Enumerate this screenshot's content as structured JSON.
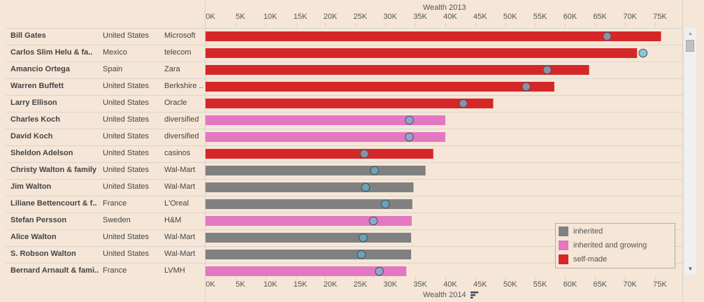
{
  "chart_data": {
    "type": "bar",
    "title": "",
    "top_axis_label": "Wealth 2013",
    "bottom_axis_label": "Wealth 2014",
    "xlim": [
      0,
      78
    ],
    "ticks": [
      "0K",
      "5K",
      "10K",
      "15K",
      "20K",
      "25K",
      "30K",
      "35K",
      "40K",
      "45K",
      "50K",
      "55K",
      "60K",
      "65K",
      "70K",
      "75K"
    ],
    "tick_values": [
      0,
      5,
      10,
      15,
      20,
      25,
      30,
      35,
      40,
      45,
      50,
      55,
      60,
      65,
      70,
      75
    ],
    "columns": [
      "Name",
      "Country",
      "Source"
    ],
    "rows": [
      {
        "name": "Bill Gates",
        "country": "United States",
        "source": "Microsoft",
        "type": "self-made",
        "wealth_2014": 76.0,
        "wealth_2013": 67.0
      },
      {
        "name": "Carlos Slim Helu & fa..",
        "country": "Mexico",
        "source": "telecom",
        "type": "self-made",
        "wealth_2014": 72.0,
        "wealth_2013": 73.0
      },
      {
        "name": "Amancio Ortega",
        "country": "Spain",
        "source": "Zara",
        "type": "self-made",
        "wealth_2014": 64.0,
        "wealth_2013": 57.0
      },
      {
        "name": "Warren Buffett",
        "country": "United States",
        "source": "Berkshire ..",
        "type": "self-made",
        "wealth_2014": 58.2,
        "wealth_2013": 53.5
      },
      {
        "name": "Larry Ellison",
        "country": "United States",
        "source": "Oracle",
        "type": "self-made",
        "wealth_2014": 48.0,
        "wealth_2013": 43.0
      },
      {
        "name": "Charles Koch",
        "country": "United States",
        "source": "diversified",
        "type": "inherited and growing",
        "wealth_2014": 40.0,
        "wealth_2013": 34.0
      },
      {
        "name": "David Koch",
        "country": "United States",
        "source": "diversified",
        "type": "inherited and growing",
        "wealth_2014": 40.0,
        "wealth_2013": 34.0
      },
      {
        "name": "Sheldon Adelson",
        "country": "United States",
        "source": "casinos",
        "type": "self-made",
        "wealth_2014": 38.0,
        "wealth_2013": 26.5
      },
      {
        "name": "Christy Walton & family",
        "country": "United States",
        "source": "Wal-Mart",
        "type": "inherited",
        "wealth_2014": 36.7,
        "wealth_2013": 28.2
      },
      {
        "name": "Jim Walton",
        "country": "United States",
        "source": "Wal-Mart",
        "type": "inherited",
        "wealth_2014": 34.7,
        "wealth_2013": 26.7
      },
      {
        "name": "Liliane Bettencourt & f..",
        "country": "France",
        "source": "L'Oreal",
        "type": "inherited",
        "wealth_2014": 34.5,
        "wealth_2013": 30.0
      },
      {
        "name": "Stefan Persson",
        "country": "Sweden",
        "source": "H&M",
        "type": "inherited and growing",
        "wealth_2014": 34.4,
        "wealth_2013": 28.0
      },
      {
        "name": "Alice Walton",
        "country": "United States",
        "source": "Wal-Mart",
        "type": "inherited",
        "wealth_2014": 34.3,
        "wealth_2013": 26.3
      },
      {
        "name": "S. Robson Walton",
        "country": "United States",
        "source": "Wal-Mart",
        "type": "inherited",
        "wealth_2014": 34.3,
        "wealth_2013": 26.0
      },
      {
        "name": "Bernard Arnault & fami..",
        "country": "France",
        "source": "LVMH",
        "type": "inherited and growing",
        "wealth_2014": 33.5,
        "wealth_2013": 29.0
      }
    ],
    "legend": {
      "position": "bottom-right",
      "items": [
        {
          "label": "inherited",
          "color": "#808080"
        },
        {
          "label": "inherited and growing",
          "color": "#e377c2"
        },
        {
          "label": "self-made",
          "color": "#d62728"
        }
      ]
    },
    "marker_colors": {
      "self-made": "#8f8ea3",
      "inherited and growing": "#8fa5cc",
      "inherited": "#6aa2b8",
      "increase": "#8cc5d6"
    }
  }
}
